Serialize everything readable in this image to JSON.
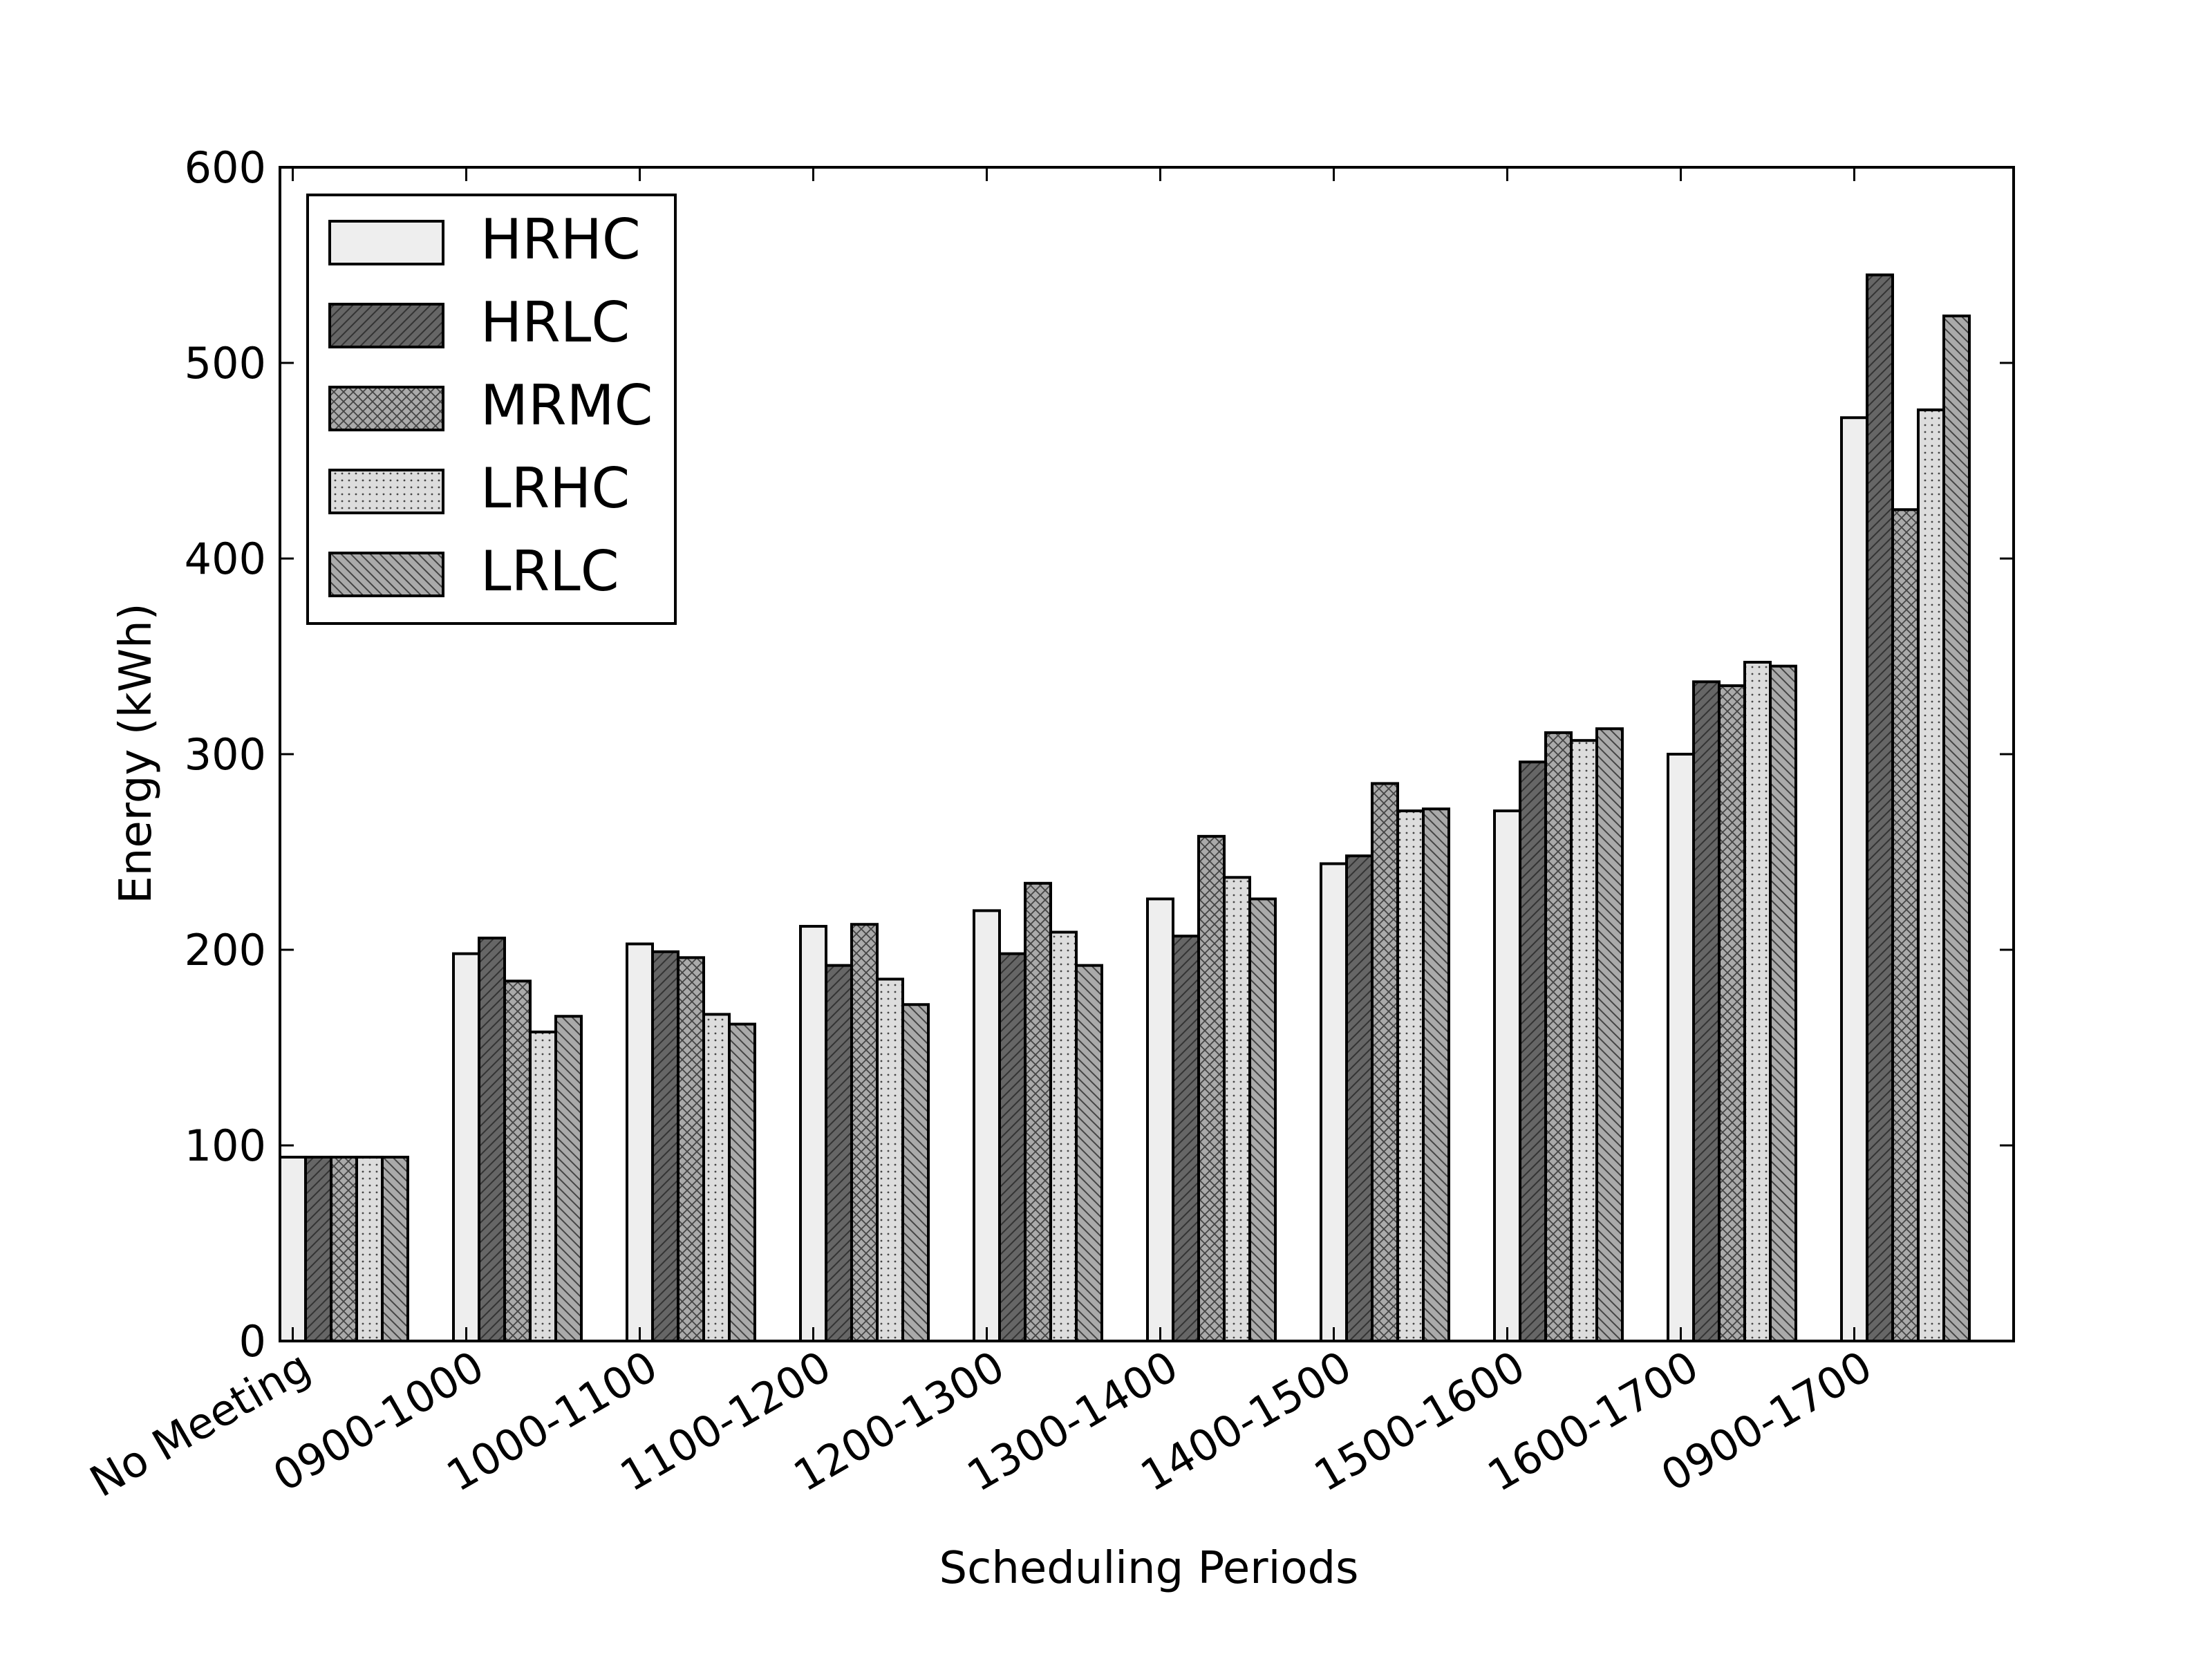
{
  "chart_data": {
    "type": "bar",
    "xlabel": "Scheduling Periods",
    "ylabel": "Energy (kWh)",
    "ylim": [
      0,
      600
    ],
    "yticks": [
      0,
      100,
      200,
      300,
      400,
      500,
      600
    ],
    "categories": [
      "No Meeting",
      "0900-1000",
      "1000-1100",
      "1100-1200",
      "1200-1300",
      "1300-1400",
      "1400-1500",
      "1500-1600",
      "1600-1700",
      "0900-1700"
    ],
    "series": [
      {
        "name": "HRHC",
        "color": "#eeeeee",
        "pattern": "none",
        "values": [
          94,
          198,
          203,
          212,
          220,
          226,
          244,
          271,
          300,
          472
        ]
      },
      {
        "name": "HRLC",
        "color": "#666666",
        "pattern": "diagonal-forward",
        "values": [
          94,
          206,
          199,
          192,
          198,
          207,
          248,
          296,
          337,
          545
        ]
      },
      {
        "name": "MRMC",
        "color": "#aaaaaa",
        "pattern": "crosshatch",
        "values": [
          94,
          184,
          196,
          213,
          234,
          258,
          285,
          311,
          335,
          425
        ]
      },
      {
        "name": "LRHC",
        "color": "#dddddd",
        "pattern": "dots",
        "values": [
          94,
          158,
          167,
          185,
          209,
          237,
          271,
          307,
          347,
          476
        ]
      },
      {
        "name": "LRLC",
        "color": "#aaaaaa",
        "pattern": "diagonal-back",
        "values": [
          94,
          166,
          162,
          172,
          192,
          226,
          272,
          313,
          345,
          524
        ]
      }
    ],
    "legend_position": "top-left",
    "grid": false
  }
}
